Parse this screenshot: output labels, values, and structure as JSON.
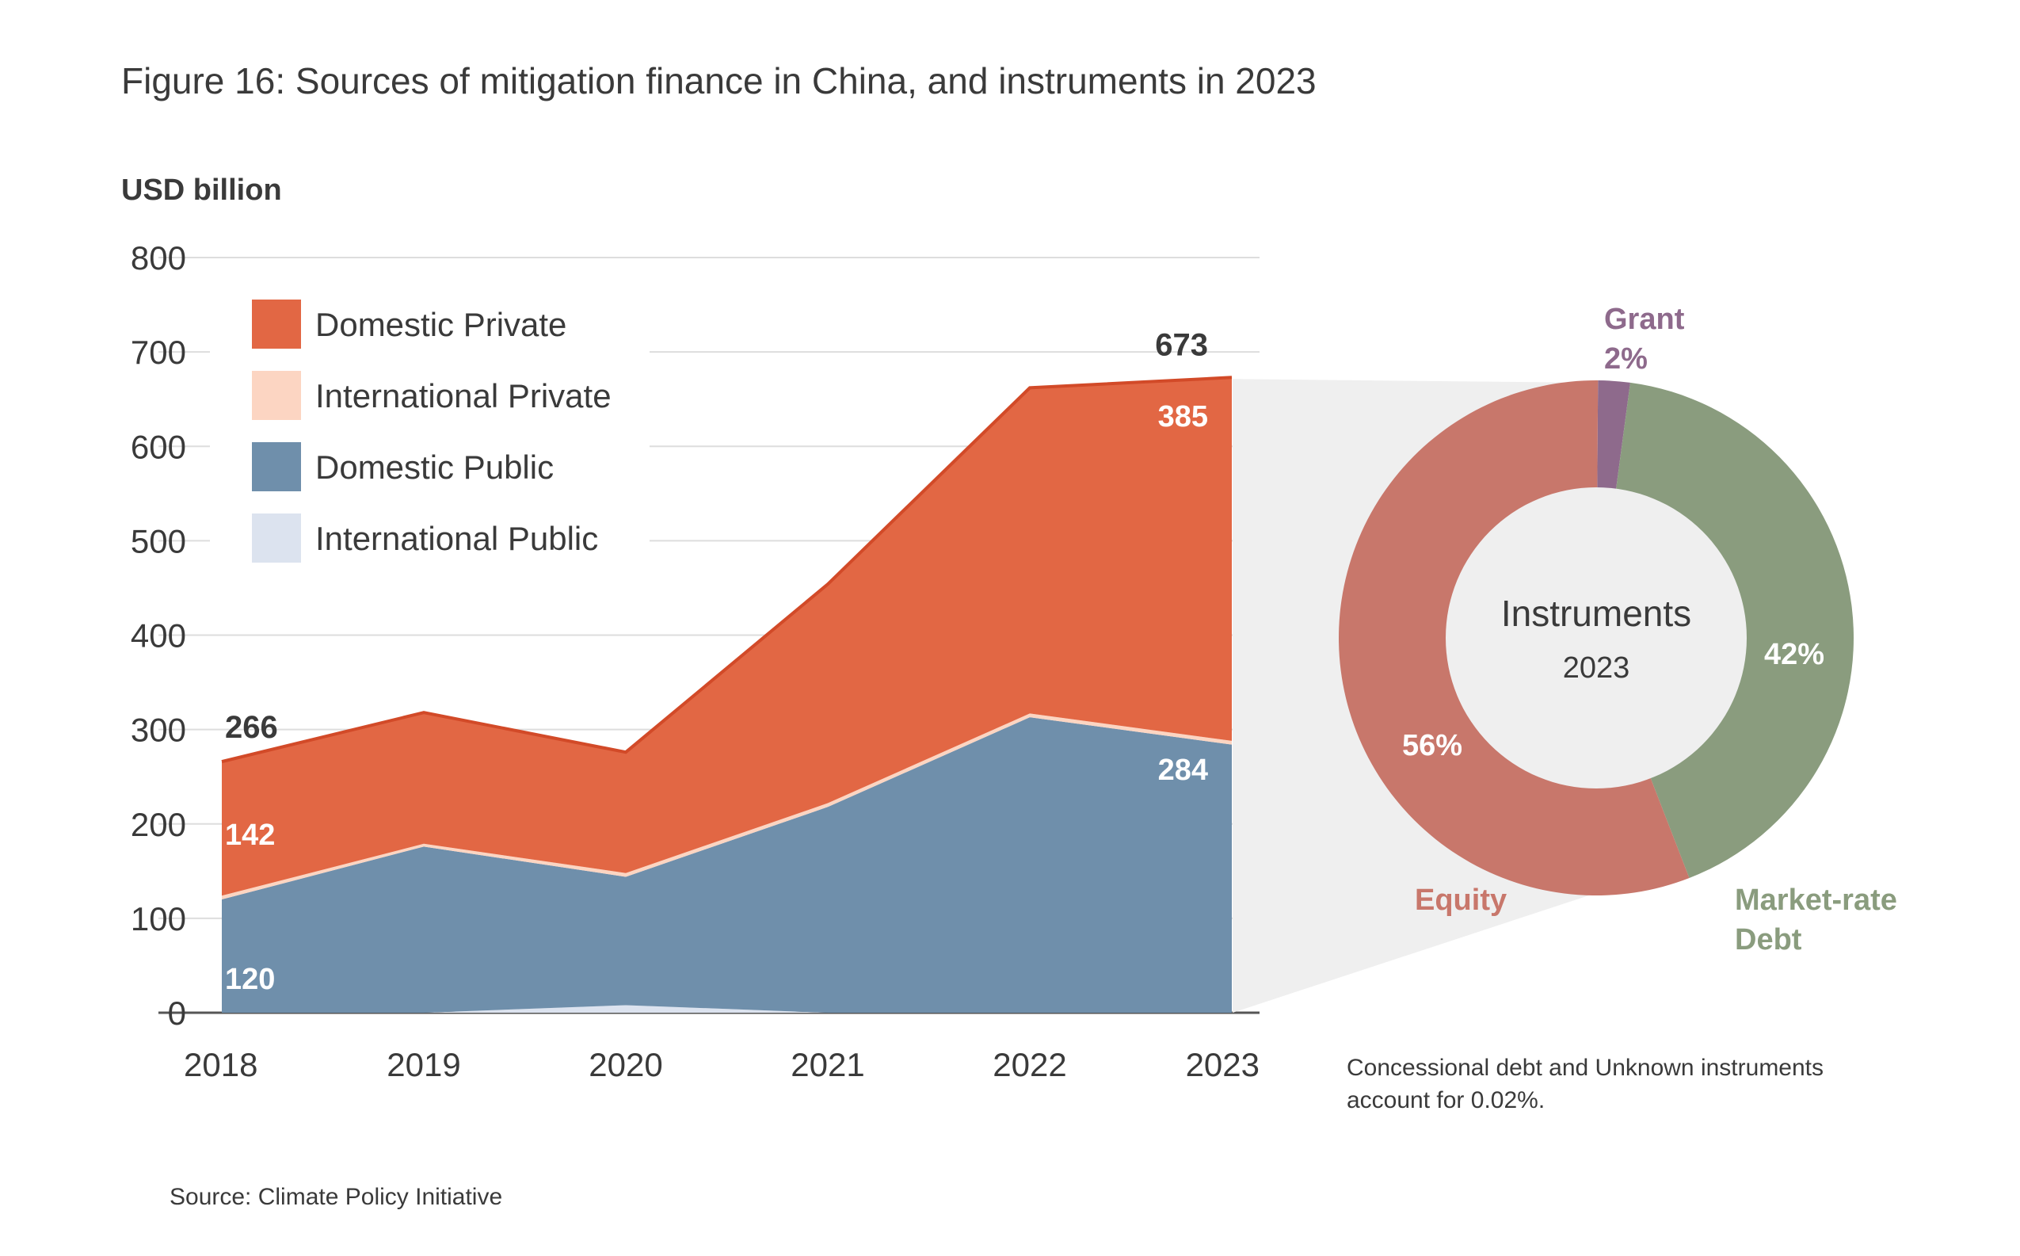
{
  "title": "Figure 16: Sources of mitigation finance in China, and instruments in 2023",
  "source": "Source: Climate Policy Initiative",
  "chart_data": [
    {
      "type": "area",
      "stacked": true,
      "ylabel": "USD billion",
      "ylim": [
        0,
        800
      ],
      "yticks": [
        0,
        100,
        200,
        300,
        400,
        500,
        600,
        700,
        800
      ],
      "grid": true,
      "legend_position": "top-left",
      "x": [
        "2018",
        "2019",
        "2020",
        "2021",
        "2022",
        "2023"
      ],
      "series": [
        {
          "name": "International Public",
          "color": "#dce3ef",
          "values": [
            0,
            0,
            8,
            0,
            0,
            0
          ]
        },
        {
          "name": "Domestic Public",
          "color": "#6f8fab",
          "values": [
            120,
            176,
            136,
            218,
            313,
            284
          ]
        },
        {
          "name": "International Private",
          "color": "#fcd5c2",
          "values": [
            4,
            3,
            4,
            4,
            4,
            4
          ]
        },
        {
          "name": "Domestic Private",
          "color": "#e26744",
          "values": [
            142,
            139,
            128,
            232,
            345,
            385
          ]
        }
      ],
      "totals": [
        {
          "x": "2018",
          "label": "266"
        },
        {
          "x": "2023",
          "label": "673"
        }
      ],
      "annotations": [
        {
          "x": "2018",
          "series": "Domestic Private",
          "label": "142"
        },
        {
          "x": "2018",
          "series": "Domestic Public",
          "label": "120"
        },
        {
          "x": "2023",
          "series": "Domestic Private",
          "label": "385"
        },
        {
          "x": "2023",
          "series": "Domestic Public",
          "label": "284"
        }
      ]
    },
    {
      "type": "pie",
      "donut": true,
      "center_title": "Instruments",
      "center_subtitle": "2023",
      "slices": [
        {
          "name": "Grant",
          "percent": 2,
          "label": "2%",
          "color": "#8e6a8c"
        },
        {
          "name": "Market-rate Debt",
          "name_line1": "Market-rate",
          "name_line2": "Debt",
          "percent": 42,
          "label": "42%",
          "color": "#8a9c7e"
        },
        {
          "name": "Equity",
          "percent": 56,
          "label": "56%",
          "color": "#c8776b"
        }
      ],
      "note_line1": "Concessional debt and Unknown instruments",
      "note_line2": "account for 0.02%."
    }
  ]
}
